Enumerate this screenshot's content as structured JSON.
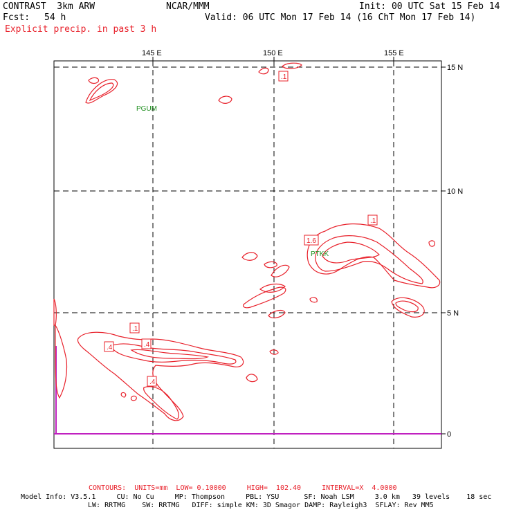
{
  "header": {
    "model": "CONTRAST  3km ARW",
    "org": "NCAR/MMM",
    "init": "Init: 00 UTC Sat 15 Feb 14",
    "fcst_label": "Fcst:",
    "fcst_value": "54 h",
    "valid": "Valid: 06 UTC Mon 17 Feb 14 (16 ChT Mon 17 Feb 14)",
    "field": "Explicit precip. in past 3 h"
  },
  "map": {
    "lon_labels": [
      "145 E",
      "150 E",
      "155 E"
    ],
    "lat_labels": [
      "15 N",
      "10 N",
      "5 N",
      "0"
    ],
    "stations": [
      "PGUM",
      "PTKK"
    ],
    "contour_labels": [
      ".1",
      ".1",
      "1.6",
      ".1",
      ".4",
      ".4",
      ".4"
    ]
  },
  "footer": {
    "contours": "CONTOURS:  UNITS=mm  LOW= 0.10000     HIGH=  102.40     INTERVAL=X  4.0000",
    "info1": "Model Info: V3.5.1     CU: No Cu     MP: Thompson     PBL: YSU      SF: Noah LSM     3.0 km   39 levels    18 sec",
    "info2": "LW: RRTMG    SW: RRTMG   DIFF: simple KM: 3D Smagor DAMP: Rayleigh3  SFLAY: Rev MM5"
  },
  "colors": {
    "contour": "#e8202a",
    "station": "#1f8f1f",
    "equator": "#c020c0",
    "grid": "#000000"
  }
}
